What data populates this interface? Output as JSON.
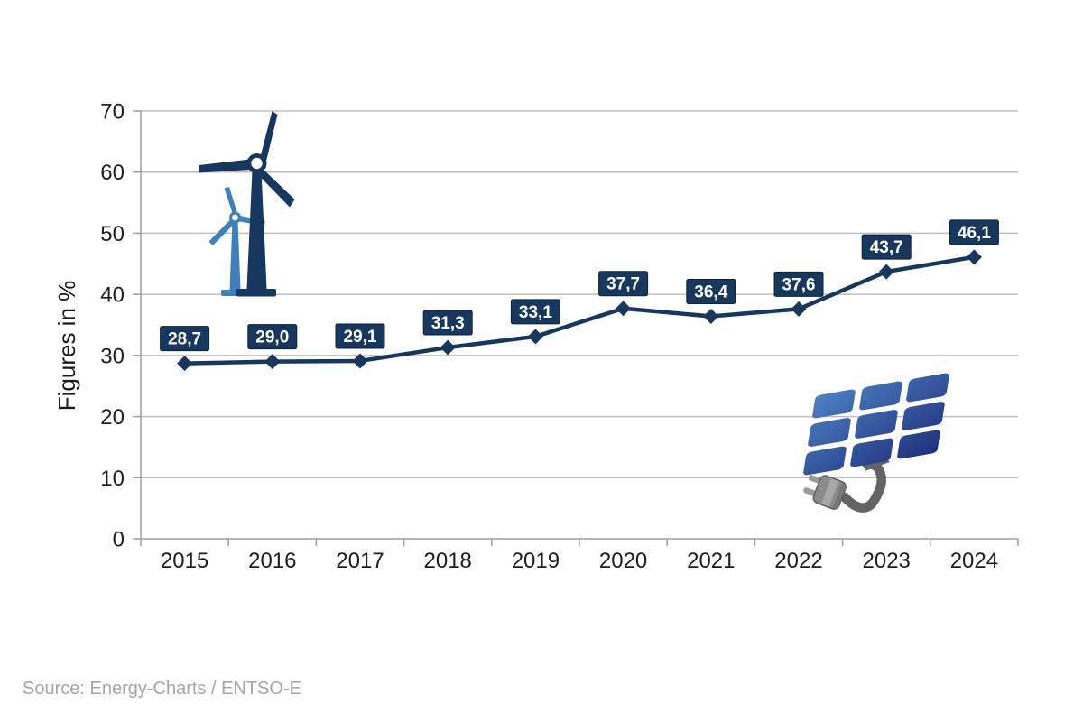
{
  "chart_data": {
    "type": "line",
    "title": "",
    "ylabel": "Figures in %",
    "xlabel": "",
    "categories": [
      "2015",
      "2016",
      "2017",
      "2018",
      "2019",
      "2020",
      "2021",
      "2022",
      "2023",
      "2024"
    ],
    "series": [
      {
        "name": "renewable-share-percent",
        "values": [
          28.7,
          29.0,
          29.1,
          31.3,
          33.1,
          37.7,
          36.4,
          37.6,
          43.7,
          46.1
        ],
        "value_labels": [
          "28,7",
          "29,0",
          "29,1",
          "31,3",
          "33,1",
          "37,7",
          "36,4",
          "37,6",
          "43,7",
          "46,1"
        ]
      }
    ],
    "ylim": [
      0,
      70
    ],
    "yticks": [
      0,
      10,
      20,
      30,
      40,
      50,
      60,
      70
    ],
    "grid": "horizontal",
    "legend_position": "none",
    "marker": "diamond",
    "decimal_separator": ","
  },
  "footer": {
    "source": "Source: Energy-Charts / ENTSO-E"
  },
  "colors": {
    "line": "#17375E",
    "marker": "#17375E",
    "label_box_bg": "#17375E",
    "label_box_border": "#0D2238",
    "label_text": "#FFFFFF",
    "gridline": "#BFBFBF",
    "axis": "#9E9E9E",
    "tick_text": "#1F1F1F",
    "axis_title_text": "#1A1A1A",
    "source_text": "#A6A6A6",
    "turbine_dark": "#17375E",
    "turbine_light": "#3E7FBC",
    "panel_gradient_start": "#4E82C6",
    "panel_gradient_end": "#1E2E7A",
    "cable_gray": "#646464",
    "plug_body_gray": "#8B8B8B",
    "plug_band_gray": "#A8A8A8",
    "plug_prong_gray": "#9A9A9A"
  },
  "icons": {
    "wind_turbines": "wind-turbines-icon",
    "solar_panel_plug": "solar-panel-plug-icon"
  }
}
